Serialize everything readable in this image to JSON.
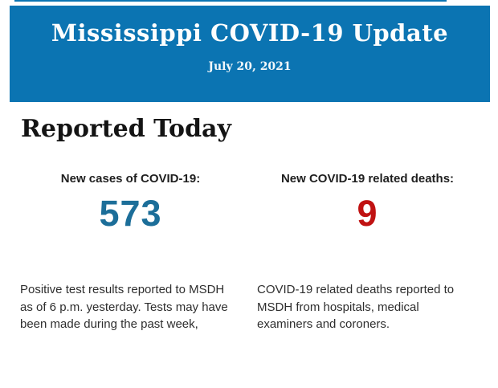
{
  "page": {
    "background_color": "#ffffff",
    "accent_color": "#0b74b2"
  },
  "header": {
    "title": "Mississippi COVID-19 Update",
    "date": "July 20, 2021",
    "background_color": "#0b74b2",
    "text_color": "#ffffff"
  },
  "main": {
    "section_title": "Reported Today",
    "stats": [
      {
        "label": "New cases of COVID-19:",
        "value": "573",
        "value_color": "#1c6e99",
        "description": "Positive test results reported to MSDH as of 6 p.m. yesterday. Tests may have been made during the past week,"
      },
      {
        "label": "New COVID-19 related deaths:",
        "value": "9",
        "value_color": "#c01212",
        "description": "COVID-19 related deaths reported to MSDH from hospitals, medical examiners and coroners."
      }
    ]
  }
}
